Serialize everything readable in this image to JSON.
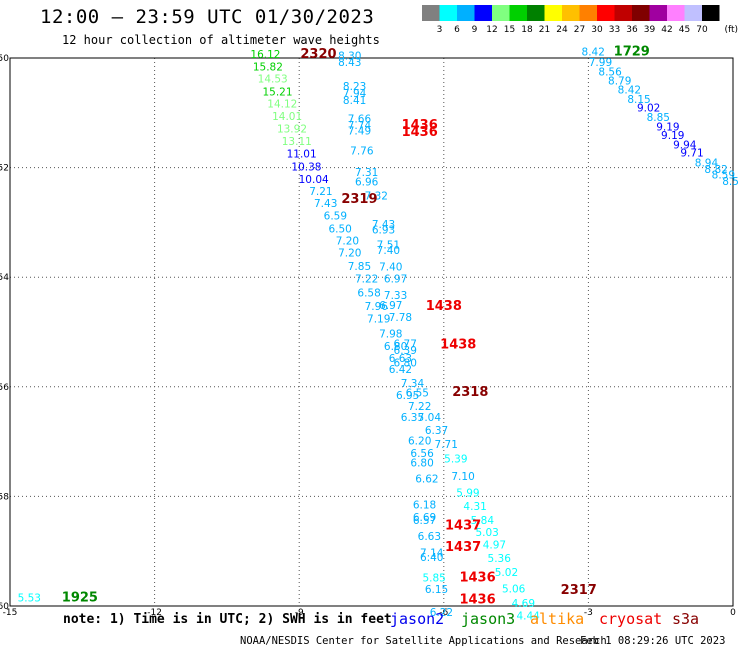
{
  "header": {
    "title": "12:00 – 23:59 UTC 01/30/2023",
    "subtitle": "12 hour collection of altimeter wave heights"
  },
  "colorbar": {
    "unit": "(ft)",
    "labels": [
      "3",
      "6",
      "9",
      "12",
      "15",
      "18",
      "21",
      "24",
      "27",
      "30",
      "33",
      "36",
      "39",
      "42",
      "45",
      "70"
    ],
    "colors": [
      "#808080",
      "#00ffff",
      "#00b0ff",
      "#0000ff",
      "#80ff80",
      "#00d000",
      "#008000",
      "#ffff00",
      "#ffc000",
      "#ff8000",
      "#ff0000",
      "#c00000",
      "#800000",
      "#a000a0",
      "#ff80ff",
      "#c0c0ff",
      "#000000"
    ]
  },
  "chart_data": {
    "type": "scatter",
    "xlim": [
      -15,
      0
    ],
    "ylim": [
      -60,
      -50
    ],
    "x_ticks": [
      "-15",
      "-12",
      "-9",
      "-6",
      "-3",
      "0"
    ],
    "x_tick_values": [
      -15,
      -12,
      -9,
      -6,
      -3,
      0
    ],
    "y_ticks": [
      "-50",
      "-52",
      "-54",
      "-56",
      "-58",
      "-60"
    ],
    "y_tick_values": [
      -50,
      -52,
      -54,
      -56,
      -58,
      -60
    ],
    "grid": true,
    "time_labels": [
      {
        "text": "2320",
        "x": -8.6,
        "y": -50.0,
        "color": "#880000"
      },
      {
        "text": "1729",
        "x": -2.1,
        "y": -49.95,
        "color": "#008800"
      },
      {
        "text": "1436",
        "x": -6.5,
        "y": -51.3,
        "color": "#ee0000"
      },
      {
        "text": "1436",
        "x": -6.5,
        "y": -51.42,
        "color": "#ee0000"
      },
      {
        "text": "2319",
        "x": -7.75,
        "y": -52.65,
        "color": "#880000"
      },
      {
        "text": "1438",
        "x": -6.0,
        "y": -54.6,
        "color": "#ee0000"
      },
      {
        "text": "1438",
        "x": -5.7,
        "y": -55.3,
        "color": "#ee0000"
      },
      {
        "text": "2318",
        "x": -5.45,
        "y": -56.17,
        "color": "#880000"
      },
      {
        "text": "1437",
        "x": -5.6,
        "y": -58.6,
        "color": "#ee0000"
      },
      {
        "text": "1437",
        "x": -5.6,
        "y": -59.0,
        "color": "#ee0000"
      },
      {
        "text": "1436",
        "x": -5.3,
        "y": -59.55,
        "color": "#ee0000"
      },
      {
        "text": "1436",
        "x": -5.3,
        "y": -59.95,
        "color": "#ee0000"
      },
      {
        "text": "2317",
        "x": -3.2,
        "y": -59.78,
        "color": "#880000"
      },
      {
        "text": "1925",
        "x": -13.55,
        "y": -59.92,
        "color": "#008800"
      }
    ],
    "values": [
      {
        "v": "16.12",
        "x": -9.7,
        "y": -50.0,
        "c": "#00d000"
      },
      {
        "v": "15.82",
        "x": -9.65,
        "y": -50.23,
        "c": "#00d000"
      },
      {
        "v": "14.53",
        "x": -9.55,
        "y": -50.45,
        "c": "#80ff80"
      },
      {
        "v": "15.21",
        "x": -9.45,
        "y": -50.68,
        "c": "#00d000"
      },
      {
        "v": "14.12",
        "x": -9.35,
        "y": -50.9,
        "c": "#80ff80"
      },
      {
        "v": "14.01",
        "x": -9.25,
        "y": -51.13,
        "c": "#80ff80"
      },
      {
        "v": "13.92",
        "x": -9.15,
        "y": -51.36,
        "c": "#80ff80"
      },
      {
        "v": "13.11",
        "x": -9.05,
        "y": -51.59,
        "c": "#80ff80"
      },
      {
        "v": "11.01",
        "x": -8.95,
        "y": -51.82,
        "c": "#0000ff"
      },
      {
        "v": "10.38",
        "x": -8.85,
        "y": -52.05,
        "c": "#0000ff"
      },
      {
        "v": "10.04",
        "x": -8.7,
        "y": -52.28,
        "c": "#0000ff"
      },
      {
        "v": "7.21",
        "x": -8.55,
        "y": -52.5,
        "c": "#00b0ff"
      },
      {
        "v": "7.43",
        "x": -8.45,
        "y": -52.72,
        "c": "#00b0ff"
      },
      {
        "v": "6.59",
        "x": -8.25,
        "y": -52.95,
        "c": "#00b0ff"
      },
      {
        "v": "6.50",
        "x": -8.15,
        "y": -53.18,
        "c": "#00b0ff"
      },
      {
        "v": "7.20",
        "x": -8.0,
        "y": -53.4,
        "c": "#00b0ff"
      },
      {
        "v": "7.20",
        "x": -7.95,
        "y": -53.62,
        "c": "#00b0ff"
      },
      {
        "v": "7.85",
        "x": -7.75,
        "y": -53.87,
        "c": "#00b0ff"
      },
      {
        "v": "7.22",
        "x": -7.6,
        "y": -54.1,
        "c": "#00b0ff"
      },
      {
        "v": "6.58",
        "x": -7.55,
        "y": -54.35,
        "c": "#00b0ff"
      },
      {
        "v": "7.96",
        "x": -7.4,
        "y": -54.6,
        "c": "#00b0ff"
      },
      {
        "v": "7.19",
        "x": -7.35,
        "y": -54.83,
        "c": "#00b0ff"
      },
      {
        "v": "7.98",
        "x": -7.1,
        "y": -55.1,
        "c": "#00b0ff"
      },
      {
        "v": "6.80",
        "x": -7.0,
        "y": -55.33,
        "c": "#00b0ff"
      },
      {
        "v": "6.63",
        "x": -6.9,
        "y": -55.55,
        "c": "#00b0ff"
      },
      {
        "v": "6.42",
        "x": -6.9,
        "y": -55.75,
        "c": "#00b0ff"
      },
      {
        "v": "7.34",
        "x": -6.65,
        "y": -56.0,
        "c": "#00b0ff"
      },
      {
        "v": "6.95",
        "x": -6.75,
        "y": -56.22,
        "c": "#00b0ff"
      },
      {
        "v": "7.22",
        "x": -6.5,
        "y": -56.42,
        "c": "#00b0ff"
      },
      {
        "v": "6.35",
        "x": -6.65,
        "y": -56.62,
        "c": "#00b0ff"
      },
      {
        "v": "6.37",
        "x": -6.15,
        "y": -56.86,
        "c": "#00b0ff"
      },
      {
        "v": "6.20",
        "x": -6.5,
        "y": -57.05,
        "c": "#00b0ff"
      },
      {
        "v": "7.71",
        "x": -5.95,
        "y": -57.12,
        "c": "#00b0ff"
      },
      {
        "v": "6.56",
        "x": -6.45,
        "y": -57.28,
        "c": "#00b0ff"
      },
      {
        "v": "6.80",
        "x": -6.45,
        "y": -57.45,
        "c": "#00b0ff"
      },
      {
        "v": "5.39",
        "x": -5.75,
        "y": -57.38,
        "c": "#00ffff"
      },
      {
        "v": "6.62",
        "x": -6.35,
        "y": -57.75,
        "c": "#00b0ff"
      },
      {
        "v": "7.10",
        "x": -5.6,
        "y": -57.7,
        "c": "#00b0ff"
      },
      {
        "v": "5.99",
        "x": -5.5,
        "y": -58.0,
        "c": "#00ffff"
      },
      {
        "v": "6.18",
        "x": -6.4,
        "y": -58.22,
        "c": "#00b0ff"
      },
      {
        "v": "4.31",
        "x": -5.35,
        "y": -58.25,
        "c": "#00ffff"
      },
      {
        "v": "6.69",
        "x": -6.4,
        "y": -58.45,
        "c": "#00b0ff"
      },
      {
        "v": "5.84",
        "x": -5.2,
        "y": -58.5,
        "c": "#00ffff"
      },
      {
        "v": "5.03",
        "x": -5.1,
        "y": -58.72,
        "c": "#00ffff"
      },
      {
        "v": "6.63",
        "x": -6.3,
        "y": -58.8,
        "c": "#00b0ff"
      },
      {
        "v": "4.97",
        "x": -4.95,
        "y": -58.95,
        "c": "#00ffff"
      },
      {
        "v": "7.14",
        "x": -6.25,
        "y": -59.1,
        "c": "#00b0ff"
      },
      {
        "v": "5.36",
        "x": -4.85,
        "y": -59.2,
        "c": "#00ffff"
      },
      {
        "v": "5.02",
        "x": -4.7,
        "y": -59.45,
        "c": "#00ffff"
      },
      {
        "v": "5.85",
        "x": -6.2,
        "y": -59.55,
        "c": "#00ffff"
      },
      {
        "v": "6.15",
        "x": -6.15,
        "y": -59.76,
        "c": "#00b0ff"
      },
      {
        "v": "5.06",
        "x": -4.55,
        "y": -59.75,
        "c": "#00ffff"
      },
      {
        "v": "4.69",
        "x": -4.35,
        "y": -60.02,
        "c": "#00ffff"
      },
      {
        "v": "6.22",
        "x": -6.05,
        "y": -60.18,
        "c": "#00b0ff"
      },
      {
        "v": "4.44",
        "x": -4.25,
        "y": -60.25,
        "c": "#00ffff"
      },
      {
        "v": "8.30",
        "x": -7.95,
        "y": -50.03,
        "c": "#00b0ff"
      },
      {
        "v": "8.43",
        "x": -7.95,
        "y": -50.15,
        "c": "#00b0ff"
      },
      {
        "v": "8.23",
        "x": -7.85,
        "y": -50.58,
        "c": "#00b0ff"
      },
      {
        "v": "7.94",
        "x": -7.85,
        "y": -50.71,
        "c": "#00b0ff"
      },
      {
        "v": "8.41",
        "x": -7.85,
        "y": -50.84,
        "c": "#00b0ff"
      },
      {
        "v": "7.66",
        "x": -7.75,
        "y": -51.18,
        "c": "#00b0ff"
      },
      {
        "v": "7.74",
        "x": -7.75,
        "y": -51.3,
        "c": "#00b0ff"
      },
      {
        "v": "7.49",
        "x": -7.75,
        "y": -51.4,
        "c": "#00b0ff"
      },
      {
        "v": "7.76",
        "x": -7.7,
        "y": -51.76,
        "c": "#00b0ff"
      },
      {
        "v": "7.31",
        "x": -7.6,
        "y": -52.15,
        "c": "#00b0ff"
      },
      {
        "v": "6.96",
        "x": -7.6,
        "y": -52.33,
        "c": "#00b0ff"
      },
      {
        "v": "7.32",
        "x": -7.4,
        "y": -52.58,
        "c": "#00b0ff"
      },
      {
        "v": "7.43",
        "x": -7.25,
        "y": -53.1,
        "c": "#00b0ff"
      },
      {
        "v": "6.93",
        "x": -7.25,
        "y": -53.2,
        "c": "#00b0ff"
      },
      {
        "v": "7.51",
        "x": -7.15,
        "y": -53.48,
        "c": "#00b0ff"
      },
      {
        "v": "7.40",
        "x": -7.15,
        "y": -53.58,
        "c": "#00b0ff"
      },
      {
        "v": "7.40",
        "x": -7.1,
        "y": -53.88,
        "c": "#00b0ff"
      },
      {
        "v": "6.97",
        "x": -7.0,
        "y": -54.1,
        "c": "#00b0ff"
      },
      {
        "v": "7.33",
        "x": -7.0,
        "y": -54.4,
        "c": "#00b0ff"
      },
      {
        "v": "6.97",
        "x": -7.1,
        "y": -54.58,
        "c": "#00b0ff"
      },
      {
        "v": "7.78",
        "x": -6.9,
        "y": -54.8,
        "c": "#00b0ff"
      },
      {
        "v": "6.77",
        "x": -6.8,
        "y": -55.28,
        "c": "#00b0ff"
      },
      {
        "v": "6.39",
        "x": -6.8,
        "y": -55.4,
        "c": "#00b0ff"
      },
      {
        "v": "6.80",
        "x": -6.8,
        "y": -55.63,
        "c": "#00b0ff"
      },
      {
        "v": "6.55",
        "x": -6.55,
        "y": -56.18,
        "c": "#00b0ff"
      },
      {
        "v": "7.04",
        "x": -6.3,
        "y": -56.62,
        "c": "#00b0ff"
      },
      {
        "v": "6.57",
        "x": -6.4,
        "y": -58.5,
        "c": "#00b0ff"
      },
      {
        "v": "6.40",
        "x": -6.25,
        "y": -59.18,
        "c": "#00b0ff"
      },
      {
        "v": "8.42",
        "x": -2.9,
        "y": -49.95,
        "c": "#00b0ff"
      },
      {
        "v": "7.99",
        "x": -2.75,
        "y": -50.15,
        "c": "#00b0ff"
      },
      {
        "v": "8.56",
        "x": -2.55,
        "y": -50.32,
        "c": "#00b0ff"
      },
      {
        "v": "8.79",
        "x": -2.35,
        "y": -50.48,
        "c": "#00b0ff"
      },
      {
        "v": "8.42",
        "x": -2.15,
        "y": -50.65,
        "c": "#00b0ff"
      },
      {
        "v": "8.15",
        "x": -1.95,
        "y": -50.82,
        "c": "#00b0ff"
      },
      {
        "v": "9.02",
        "x": -1.75,
        "y": -50.98,
        "c": "#0000ff"
      },
      {
        "v": "8.85",
        "x": -1.55,
        "y": -51.15,
        "c": "#00b0ff"
      },
      {
        "v": "9.19",
        "x": -1.35,
        "y": -51.32,
        "c": "#0000ff"
      },
      {
        "v": "9.19",
        "x": -1.25,
        "y": -51.48,
        "c": "#0000ff"
      },
      {
        "v": "9.94",
        "x": -1.0,
        "y": -51.65,
        "c": "#0000ff"
      },
      {
        "v": "9.71",
        "x": -0.85,
        "y": -51.8,
        "c": "#0000ff"
      },
      {
        "v": "8.94",
        "x": -0.55,
        "y": -51.98,
        "c": "#00b0ff"
      },
      {
        "v": "8.82",
        "x": -0.35,
        "y": -52.1,
        "c": "#00b0ff"
      },
      {
        "v": "8.59",
        "x": -0.2,
        "y": -52.2,
        "c": "#00b0ff"
      },
      {
        "v": "8.5",
        "x": -0.05,
        "y": -52.32,
        "c": "#00b0ff"
      },
      {
        "v": "5.53",
        "x": -14.6,
        "y": -59.92,
        "c": "#00ffff"
      }
    ]
  },
  "legend": {
    "note": "note: 1) Time is in UTC; 2) SWH is in feet",
    "satellites": [
      "jason2",
      "jason3",
      "altika",
      "cryosat",
      "s3a"
    ]
  },
  "footer": {
    "credit": "NOAA/NESDIS Center for Satellite Applications and Research",
    "timestamp": "Feb  1 08:29:26 UTC 2023"
  }
}
